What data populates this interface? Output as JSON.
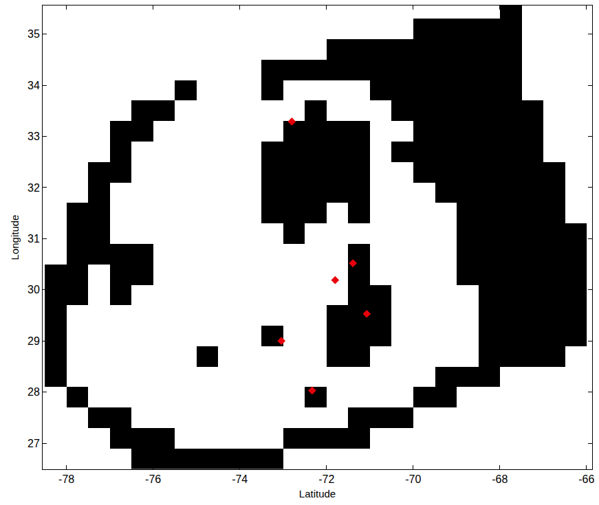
{
  "chart_data": {
    "type": "heatmap",
    "xlabel": "Latitude",
    "ylabel": "Longitude",
    "xlim": [
      -78.55,
      -65.87
    ],
    "ylim": [
      26.49,
      35.56
    ],
    "xticks": [
      -78,
      -76,
      -74,
      -72,
      -70,
      -68,
      -66
    ],
    "yticks": [
      27,
      28,
      29,
      30,
      31,
      32,
      33,
      34,
      35
    ],
    "colors": [
      "#ffffff",
      "#000000"
    ],
    "x": [
      -78.25,
      -77.75,
      -77.25,
      -76.75,
      -76.25,
      -75.75,
      -75.25,
      -74.75,
      -74.25,
      -73.75,
      -73.25,
      -72.75,
      -72.25,
      -71.75,
      -71.25,
      -70.75,
      -70.25,
      -69.75,
      -69.25,
      -68.75,
      -68.25,
      -67.75,
      -67.25,
      -66.75,
      -66.25
    ],
    "y": [
      26.7,
      27.1,
      27.5,
      27.9,
      28.3,
      28.7,
      29.1,
      29.5,
      29.9,
      30.3,
      30.7,
      31.1,
      31.5,
      31.9,
      32.3,
      32.7,
      33.1,
      33.5,
      33.9,
      34.3,
      34.7,
      35.1,
      35.5
    ],
    "cells": [
      [
        null,
        null,
        null,
        null,
        1,
        1,
        1,
        1,
        1,
        1,
        1,
        null,
        null,
        null,
        null,
        null,
        null,
        null,
        null,
        null,
        null,
        null,
        null,
        null,
        null
      ],
      [
        null,
        null,
        null,
        1,
        1,
        1,
        0,
        0,
        0,
        0,
        0,
        1,
        1,
        1,
        1,
        null,
        null,
        null,
        null,
        null,
        null,
        null,
        null,
        null,
        null
      ],
      [
        null,
        null,
        1,
        1,
        0,
        0,
        0,
        0,
        0,
        0,
        0,
        0,
        0,
        0,
        1,
        1,
        1,
        null,
        null,
        null,
        null,
        null,
        null,
        null,
        null
      ],
      [
        null,
        1,
        0,
        0,
        0,
        0,
        0,
        0,
        0,
        0,
        0,
        0,
        1,
        0,
        0,
        0,
        0,
        1,
        1,
        null,
        null,
        null,
        null,
        null,
        null
      ],
      [
        1,
        0,
        0,
        0,
        0,
        0,
        0,
        0,
        0,
        0,
        0,
        0,
        0,
        0,
        0,
        0,
        0,
        0,
        1,
        1,
        1,
        null,
        null,
        null,
        null
      ],
      [
        1,
        0,
        0,
        0,
        0,
        0,
        0,
        1,
        0,
        0,
        0,
        0,
        0,
        1,
        1,
        0,
        0,
        0,
        0,
        0,
        1,
        1,
        1,
        1,
        null
      ],
      [
        1,
        0,
        0,
        0,
        0,
        0,
        0,
        0,
        0,
        0,
        1,
        0,
        0,
        1,
        1,
        1,
        0,
        0,
        0,
        0,
        1,
        1,
        1,
        1,
        1
      ],
      [
        1,
        0,
        0,
        0,
        0,
        0,
        0,
        0,
        0,
        0,
        0,
        0,
        0,
        1,
        1,
        1,
        0,
        0,
        0,
        0,
        1,
        1,
        1,
        1,
        1
      ],
      [
        1,
        1,
        0,
        1,
        0,
        0,
        0,
        0,
        0,
        0,
        0,
        0,
        0,
        0,
        1,
        1,
        0,
        0,
        0,
        0,
        1,
        1,
        1,
        1,
        1
      ],
      [
        1,
        1,
        0,
        1,
        1,
        0,
        0,
        0,
        0,
        0,
        0,
        0,
        0,
        0,
        1,
        0,
        0,
        0,
        0,
        1,
        1,
        1,
        1,
        1,
        1
      ],
      [
        null,
        1,
        1,
        1,
        1,
        0,
        0,
        0,
        0,
        0,
        0,
        0,
        0,
        0,
        1,
        0,
        0,
        0,
        0,
        1,
        1,
        1,
        1,
        1,
        1
      ],
      [
        null,
        1,
        1,
        0,
        0,
        0,
        0,
        0,
        0,
        0,
        0,
        1,
        0,
        0,
        0,
        0,
        0,
        0,
        0,
        1,
        1,
        1,
        1,
        1,
        1
      ],
      [
        null,
        1,
        1,
        0,
        0,
        0,
        0,
        0,
        0,
        0,
        1,
        1,
        1,
        0,
        1,
        0,
        0,
        0,
        0,
        1,
        1,
        1,
        1,
        1,
        null
      ],
      [
        null,
        null,
        1,
        0,
        0,
        0,
        0,
        0,
        0,
        0,
        1,
        1,
        1,
        1,
        1,
        0,
        0,
        0,
        1,
        1,
        1,
        1,
        1,
        1,
        null
      ],
      [
        null,
        null,
        1,
        1,
        0,
        0,
        0,
        0,
        0,
        0,
        1,
        1,
        1,
        1,
        1,
        0,
        0,
        1,
        1,
        1,
        1,
        1,
        1,
        1,
        null
      ],
      [
        null,
        null,
        null,
        1,
        0,
        0,
        0,
        0,
        0,
        0,
        1,
        1,
        1,
        1,
        1,
        0,
        1,
        1,
        1,
        1,
        1,
        1,
        1,
        null,
        null
      ],
      [
        null,
        null,
        null,
        1,
        1,
        0,
        0,
        0,
        0,
        0,
        0,
        1,
        1,
        1,
        1,
        0,
        0,
        1,
        1,
        1,
        1,
        1,
        1,
        null,
        null
      ],
      [
        null,
        null,
        null,
        null,
        1,
        1,
        0,
        0,
        0,
        0,
        0,
        0,
        1,
        0,
        0,
        0,
        1,
        1,
        1,
        1,
        1,
        1,
        1,
        null,
        null
      ],
      [
        null,
        null,
        null,
        null,
        null,
        null,
        1,
        0,
        0,
        0,
        1,
        0,
        0,
        0,
        0,
        1,
        1,
        1,
        1,
        1,
        1,
        1,
        null,
        null,
        null
      ],
      [
        null,
        null,
        null,
        null,
        null,
        null,
        null,
        null,
        null,
        null,
        1,
        1,
        1,
        1,
        1,
        1,
        1,
        1,
        1,
        1,
        1,
        1,
        null,
        null,
        null
      ],
      [
        null,
        null,
        null,
        null,
        null,
        null,
        null,
        null,
        null,
        null,
        null,
        null,
        null,
        1,
        1,
        1,
        1,
        1,
        1,
        1,
        1,
        1,
        null,
        null,
        null
      ],
      [
        null,
        null,
        null,
        null,
        null,
        null,
        null,
        null,
        null,
        null,
        null,
        null,
        null,
        null,
        null,
        null,
        null,
        1,
        1,
        1,
        1,
        1,
        null,
        null,
        null
      ],
      [
        null,
        null,
        null,
        null,
        null,
        null,
        null,
        null,
        null,
        null,
        null,
        null,
        null,
        null,
        null,
        null,
        null,
        null,
        null,
        null,
        null,
        1,
        null,
        null,
        null
      ]
    ],
    "series": [
      {
        "type": "scatter",
        "color": "#e8000b",
        "marker": "diamond",
        "x": [
          -72.8,
          -71.39,
          -71.8,
          -71.07,
          -73.04,
          -72.33
        ],
        "y": [
          33.29,
          30.52,
          30.19,
          29.53,
          29.0,
          28.03
        ]
      }
    ]
  }
}
